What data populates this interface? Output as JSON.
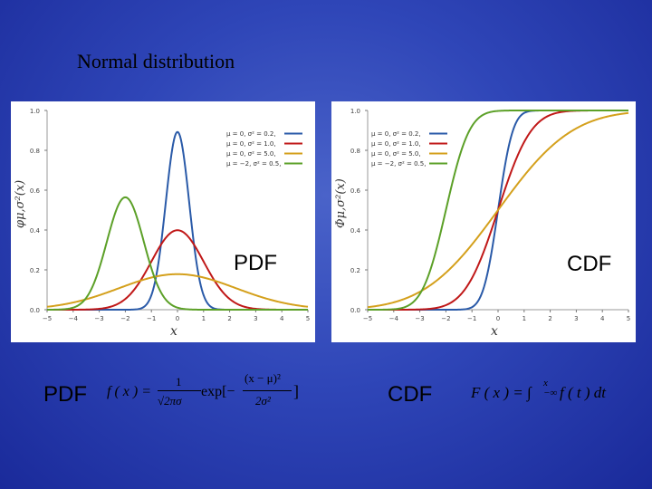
{
  "slide": {
    "title": "Normal distribution"
  },
  "pdf_panel": {
    "overlay_label": "PDF",
    "y_axis_label": "φμ,σ²(x)",
    "x_axis_label": "x"
  },
  "cdf_panel": {
    "overlay_label": "CDF",
    "y_axis_label": "Φμ,σ²(x)",
    "x_axis_label": "x"
  },
  "legend": [
    {
      "label": "μ = 0,   σ² = 0.2,",
      "color": "#2a5aa8"
    },
    {
      "label": "μ = 0,   σ² = 1.0,",
      "color": "#c01818"
    },
    {
      "label": "μ = 0,   σ² = 5.0,",
      "color": "#d4a01c"
    },
    {
      "label": "μ = −2,  σ² = 0.5,",
      "color": "#5ca028"
    }
  ],
  "bottom": {
    "pdf_label": "PDF",
    "pdf_formula_lhs": "f ( x ) =",
    "pdf_formula_num1": "1",
    "pdf_formula_den1": "√2πσ",
    "pdf_formula_exp": "exp[−",
    "pdf_formula_num2": "(x − μ)²",
    "pdf_formula_den2": "2σ²",
    "pdf_formula_close": "]",
    "cdf_label": "CDF",
    "cdf_formula": "F ( x ) = ∫",
    "cdf_formula_limits": "x −∞",
    "cdf_formula_rest": "f ( t ) dt"
  },
  "chart_data": [
    {
      "type": "line",
      "title": "PDF",
      "xlabel": "x",
      "ylabel": "φμ,σ²(x)",
      "xlim": [
        -5,
        5
      ],
      "ylim": [
        0,
        1.0
      ],
      "x_ticks": [
        -5,
        -4,
        -3,
        -2,
        -1,
        0,
        1,
        2,
        3,
        4,
        5
      ],
      "y_ticks": [
        "0.0",
        "0.2",
        "0.4",
        "0.6",
        "0.8",
        "1.0"
      ],
      "series": [
        {
          "name": "μ=0, σ²=0.2",
          "mu": 0,
          "var": 0.2,
          "color": "#2a5aa8"
        },
        {
          "name": "μ=0, σ²=1.0",
          "mu": 0,
          "var": 1.0,
          "color": "#c01818"
        },
        {
          "name": "μ=0, σ²=5.0",
          "mu": 0,
          "var": 5.0,
          "color": "#d4a01c"
        },
        {
          "name": "μ=−2, σ²=0.5",
          "mu": -2,
          "var": 0.5,
          "color": "#5ca028"
        }
      ]
    },
    {
      "type": "line",
      "title": "CDF",
      "xlabel": "x",
      "ylabel": "Φμ,σ²(x)",
      "xlim": [
        -5,
        5
      ],
      "ylim": [
        0,
        1.0
      ],
      "x_ticks": [
        -5,
        -4,
        -3,
        -2,
        -1,
        0,
        1,
        2,
        3,
        4,
        5
      ],
      "y_ticks": [
        "0.0",
        "0.2",
        "0.4",
        "0.6",
        "0.8",
        "1.0"
      ],
      "series": [
        {
          "name": "μ=0, σ²=0.2",
          "mu": 0,
          "var": 0.2,
          "color": "#2a5aa8"
        },
        {
          "name": "μ=0, σ²=1.0",
          "mu": 0,
          "var": 1.0,
          "color": "#c01818"
        },
        {
          "name": "μ=0, σ²=5.0",
          "mu": 0,
          "var": 5.0,
          "color": "#d4a01c"
        },
        {
          "name": "μ=−2, σ²=0.5",
          "mu": -2,
          "var": 0.5,
          "color": "#5ca028"
        }
      ]
    }
  ]
}
